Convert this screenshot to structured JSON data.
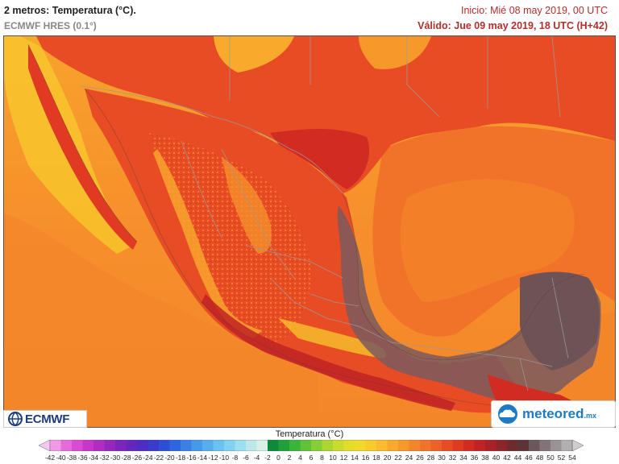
{
  "header": {
    "title": "2 metros: Temperatura (°C).",
    "model": "ECMWF HRES (0.1°)",
    "init": "Inicio: Mié 08 may 2019, 00 UTC",
    "valid": "Válido: Jue 09 may 2019, 18 UTC (H+42)"
  },
  "logos": {
    "left": "ECMWF",
    "right": "meteored",
    "right_suffix": ".mx"
  },
  "legend": {
    "title": "Temperatura (°C)",
    "ticks": [
      "-42",
      "-40",
      "-38",
      "-36",
      "-34",
      "-32",
      "-30",
      "-28",
      "-26",
      "-24",
      "-22",
      "-20",
      "-18",
      "-16",
      "-14",
      "-12",
      "-10",
      "-8",
      "-6",
      "-4",
      "-2",
      "0",
      "2",
      "4",
      "6",
      "8",
      "10",
      "12",
      "14",
      "16",
      "18",
      "20",
      "22",
      "24",
      "26",
      "28",
      "30",
      "32",
      "34",
      "36",
      "38",
      "40",
      "42",
      "44",
      "46",
      "48",
      "50",
      "52",
      "54"
    ],
    "colors": [
      "#f5c6ef",
      "#f09ae6",
      "#e56bdb",
      "#d84bd2",
      "#c736c6",
      "#b02dc0",
      "#9527bd",
      "#7d24bd",
      "#6427bd",
      "#4d2ec4",
      "#3a3acc",
      "#2f4ed6",
      "#2f66df",
      "#3a80e6",
      "#4698ea",
      "#56aeee",
      "#69c2f0",
      "#80d2f0",
      "#9cdfee",
      "#bde8ea",
      "#daf0e6",
      "#0f8a3a",
      "#1fa03a",
      "#3bb43a",
      "#5fc23a",
      "#86cd36",
      "#abd632",
      "#cadb2e",
      "#e3dd2a",
      "#f2d82a",
      "#f8cb2c",
      "#fabc2e",
      "#f9aa2d",
      "#f7982b",
      "#f4862a",
      "#f17329",
      "#ed6027",
      "#e84c25",
      "#e03a23",
      "#d22c22",
      "#c02324",
      "#a82127",
      "#8e2529",
      "#6e2b2e",
      "#5c3438",
      "#6c585c",
      "#827478",
      "#9a9294",
      "#b4b0b1",
      "#cfcdcd"
    ],
    "colors_note": ""
  },
  "map": {
    "colors": {
      "ocean_hot": "#f17329",
      "ocean_warm": "#f4862a",
      "ocean_warmer": "#f7982b",
      "land_hot": "#e84c25",
      "land_very_hot": "#d22c22",
      "extreme": "#7a5a5e",
      "cool_highland": "#f9aa2d",
      "cooler": "#f8cb2c",
      "border": "#9a9a9a"
    }
  }
}
